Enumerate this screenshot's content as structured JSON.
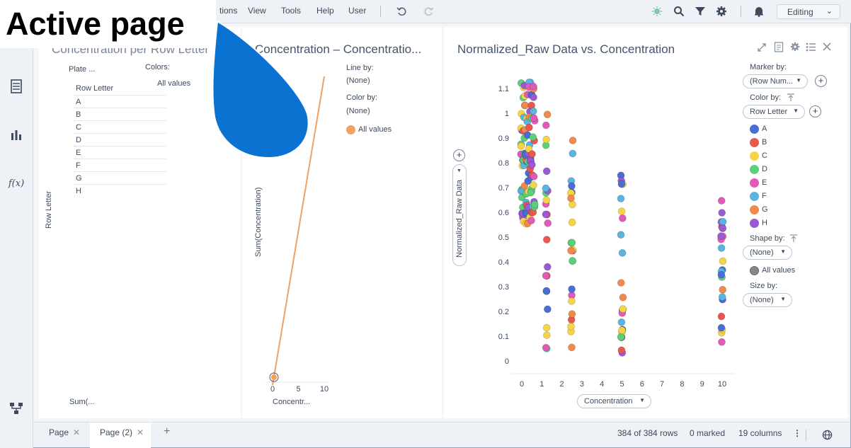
{
  "menu": {
    "items": [
      "tions",
      "View",
      "Tools",
      "Help",
      "User"
    ],
    "mode": "Editing"
  },
  "annotation": {
    "text": "Active page"
  },
  "sidebar": {
    "icons": [
      "data-table-icon",
      "bar-chart-icon",
      "fx-icon",
      "data-flow-icon"
    ]
  },
  "cross_table": {
    "title": "Concentration per Row Letter",
    "column_header": "Plate ...",
    "colors_label": "Colors:",
    "colors_value": "All values",
    "row_header": "Row Letter",
    "rows": [
      "A",
      "B",
      "C",
      "D",
      "E",
      "F",
      "G",
      "H"
    ],
    "y_axis_label": "Row Letter",
    "cell_axis_label": "Sum(..."
  },
  "line_chart": {
    "title": "Concentration – Concentratio...",
    "line_by_label": "Line by:",
    "line_by_value": "(None)",
    "color_by_label": "Color by:",
    "color_by_value": "(None)",
    "legend_all": "All values",
    "y_axis_label": "Sum(Concentration)",
    "x_axis_label": "Concentr...",
    "x_ticks": [
      "0",
      "5",
      "10"
    ],
    "color": "#f0a060"
  },
  "scatter": {
    "title": "Normalized_Raw Data vs. Concentration",
    "marker_by_label": "Marker by:",
    "marker_by_value": "(Row Num...",
    "color_by_label": "Color by:",
    "color_by_value": "Row Letter",
    "shape_by_label": "Shape by:",
    "shape_by_value": "(None)",
    "shape_legend": "All values",
    "size_by_label": "Size by:",
    "size_by_value": "(None)",
    "y_axis_label": "Normalized_Raw Data",
    "x_axis_label": "Concentration",
    "x_ticks": [
      "0",
      "1",
      "2",
      "3",
      "4",
      "5",
      "6",
      "7",
      "8",
      "9",
      "10"
    ],
    "y_ticks": [
      "0",
      "0.1",
      "0.2",
      "0.3",
      "0.4",
      "0.5",
      "0.6",
      "0.7",
      "0.8",
      "0.9",
      "1",
      "1.1"
    ],
    "legend": [
      {
        "label": "A",
        "color": "#4a6fd4"
      },
      {
        "label": "B",
        "color": "#e8584f"
      },
      {
        "label": "C",
        "color": "#f5d547"
      },
      {
        "label": "D",
        "color": "#5bcf7c"
      },
      {
        "label": "E",
        "color": "#e25ab8"
      },
      {
        "label": "F",
        "color": "#5ab4e2"
      },
      {
        "label": "G",
        "color": "#f08a4b"
      },
      {
        "label": "H",
        "color": "#9b59d6"
      }
    ]
  },
  "tabs": [
    {
      "label": "Page"
    },
    {
      "label": "Page (2)"
    }
  ],
  "status": {
    "rows": "384 of 384 rows",
    "marked": "0 marked",
    "columns": "19 columns"
  }
}
